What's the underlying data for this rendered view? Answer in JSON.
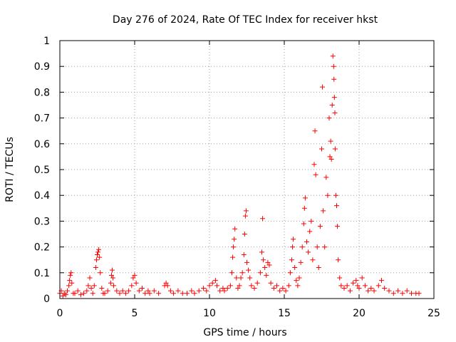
{
  "chart_data": {
    "type": "scatter",
    "title": "Day 276 of 2024, Rate Of TEC Index for receiver hkst",
    "xlabel": "GPS time / hours",
    "ylabel": "ROTI / TECUs",
    "xlim": [
      0,
      25
    ],
    "ylim": [
      0,
      1
    ],
    "x_ticks": [
      "0",
      "5",
      "10",
      "15",
      "20",
      "25"
    ],
    "y_ticks": [
      "0",
      "0.1",
      "0.2",
      "0.3",
      "0.4",
      "0.5",
      "0.6",
      "0.7",
      "0.8",
      "0.9",
      "1"
    ],
    "grid": true,
    "marker": "+",
    "color": "#ff0000",
    "series": [
      {
        "name": "",
        "points": [
          [
            0.0,
            0.02
          ],
          [
            0.1,
            0.03
          ],
          [
            0.2,
            0.01
          ],
          [
            0.3,
            0.02
          ],
          [
            0.4,
            0.015
          ],
          [
            0.5,
            0.03
          ],
          [
            0.6,
            0.05
          ],
          [
            0.65,
            0.07
          ],
          [
            0.7,
            0.09
          ],
          [
            0.75,
            0.1
          ],
          [
            0.8,
            0.06
          ],
          [
            0.9,
            0.02
          ],
          [
            1.0,
            0.02
          ],
          [
            1.2,
            0.03
          ],
          [
            1.4,
            0.015
          ],
          [
            1.6,
            0.02
          ],
          [
            1.8,
            0.03
          ],
          [
            1.9,
            0.05
          ],
          [
            2.0,
            0.08
          ],
          [
            2.1,
            0.04
          ],
          [
            2.2,
            0.02
          ],
          [
            2.3,
            0.05
          ],
          [
            2.4,
            0.12
          ],
          [
            2.45,
            0.15
          ],
          [
            2.5,
            0.17
          ],
          [
            2.55,
            0.18
          ],
          [
            2.6,
            0.19
          ],
          [
            2.65,
            0.16
          ],
          [
            2.7,
            0.1
          ],
          [
            2.8,
            0.04
          ],
          [
            2.9,
            0.02
          ],
          [
            3.0,
            0.02
          ],
          [
            3.2,
            0.03
          ],
          [
            3.4,
            0.06
          ],
          [
            3.45,
            0.09
          ],
          [
            3.5,
            0.11
          ],
          [
            3.55,
            0.08
          ],
          [
            3.6,
            0.05
          ],
          [
            3.8,
            0.03
          ],
          [
            4.0,
            0.02
          ],
          [
            4.2,
            0.03
          ],
          [
            4.4,
            0.02
          ],
          [
            4.6,
            0.03
          ],
          [
            4.8,
            0.05
          ],
          [
            4.9,
            0.08
          ],
          [
            5.0,
            0.09
          ],
          [
            5.1,
            0.06
          ],
          [
            5.3,
            0.03
          ],
          [
            5.5,
            0.04
          ],
          [
            5.7,
            0.02
          ],
          [
            5.9,
            0.03
          ],
          [
            6.0,
            0.02
          ],
          [
            6.3,
            0.03
          ],
          [
            6.6,
            0.02
          ],
          [
            7.0,
            0.05
          ],
          [
            7.1,
            0.06
          ],
          [
            7.2,
            0.05
          ],
          [
            7.4,
            0.03
          ],
          [
            7.6,
            0.02
          ],
          [
            7.9,
            0.03
          ],
          [
            8.2,
            0.02
          ],
          [
            8.5,
            0.02
          ],
          [
            8.8,
            0.03
          ],
          [
            9.0,
            0.02
          ],
          [
            9.3,
            0.03
          ],
          [
            9.6,
            0.04
          ],
          [
            9.8,
            0.03
          ],
          [
            10.0,
            0.05
          ],
          [
            10.2,
            0.06
          ],
          [
            10.4,
            0.07
          ],
          [
            10.5,
            0.05
          ],
          [
            10.7,
            0.03
          ],
          [
            10.9,
            0.04
          ],
          [
            11.0,
            0.03
          ],
          [
            11.2,
            0.04
          ],
          [
            11.4,
            0.05
          ],
          [
            11.5,
            0.1
          ],
          [
            11.55,
            0.16
          ],
          [
            11.6,
            0.2
          ],
          [
            11.65,
            0.23
          ],
          [
            11.7,
            0.27
          ],
          [
            11.8,
            0.08
          ],
          [
            11.9,
            0.04
          ],
          [
            12.0,
            0.05
          ],
          [
            12.1,
            0.08
          ],
          [
            12.2,
            0.1
          ],
          [
            12.3,
            0.17
          ],
          [
            12.35,
            0.25
          ],
          [
            12.4,
            0.32
          ],
          [
            12.45,
            0.34
          ],
          [
            12.5,
            0.14
          ],
          [
            12.6,
            0.11
          ],
          [
            12.7,
            0.08
          ],
          [
            12.8,
            0.05
          ],
          [
            13.0,
            0.04
          ],
          [
            13.2,
            0.06
          ],
          [
            13.4,
            0.1
          ],
          [
            13.5,
            0.18
          ],
          [
            13.55,
            0.31
          ],
          [
            13.6,
            0.15
          ],
          [
            13.7,
            0.12
          ],
          [
            13.8,
            0.09
          ],
          [
            13.9,
            0.14
          ],
          [
            14.0,
            0.13
          ],
          [
            14.1,
            0.06
          ],
          [
            14.3,
            0.04
          ],
          [
            14.5,
            0.05
          ],
          [
            14.7,
            0.03
          ],
          [
            14.9,
            0.04
          ],
          [
            15.1,
            0.03
          ],
          [
            15.3,
            0.05
          ],
          [
            15.4,
            0.1
          ],
          [
            15.5,
            0.15
          ],
          [
            15.55,
            0.2
          ],
          [
            15.6,
            0.23
          ],
          [
            15.7,
            0.12
          ],
          [
            15.8,
            0.07
          ],
          [
            15.9,
            0.05
          ],
          [
            16.0,
            0.08
          ],
          [
            16.1,
            0.14
          ],
          [
            16.2,
            0.2
          ],
          [
            16.3,
            0.29
          ],
          [
            16.35,
            0.35
          ],
          [
            16.4,
            0.39
          ],
          [
            16.5,
            0.22
          ],
          [
            16.6,
            0.18
          ],
          [
            16.7,
            0.26
          ],
          [
            16.8,
            0.3
          ],
          [
            16.9,
            0.15
          ],
          [
            17.0,
            0.52
          ],
          [
            17.05,
            0.65
          ],
          [
            17.1,
            0.48
          ],
          [
            17.2,
            0.2
          ],
          [
            17.3,
            0.12
          ],
          [
            17.4,
            0.28
          ],
          [
            17.5,
            0.58
          ],
          [
            17.55,
            0.82
          ],
          [
            17.6,
            0.34
          ],
          [
            17.7,
            0.2
          ],
          [
            17.8,
            0.47
          ],
          [
            17.9,
            0.4
          ],
          [
            18.0,
            0.7
          ],
          [
            18.05,
            0.55
          ],
          [
            18.1,
            0.61
          ],
          [
            18.15,
            0.54
          ],
          [
            18.2,
            0.75
          ],
          [
            18.25,
            0.94
          ],
          [
            18.3,
            0.9
          ],
          [
            18.32,
            0.85
          ],
          [
            18.35,
            0.78
          ],
          [
            18.38,
            0.72
          ],
          [
            18.4,
            0.58
          ],
          [
            18.45,
            0.4
          ],
          [
            18.5,
            0.36
          ],
          [
            18.55,
            0.28
          ],
          [
            18.6,
            0.15
          ],
          [
            18.7,
            0.08
          ],
          [
            18.8,
            0.05
          ],
          [
            19.0,
            0.04
          ],
          [
            19.2,
            0.05
          ],
          [
            19.4,
            0.03
          ],
          [
            19.6,
            0.06
          ],
          [
            19.8,
            0.07
          ],
          [
            19.9,
            0.05
          ],
          [
            20.0,
            0.04
          ],
          [
            20.2,
            0.08
          ],
          [
            20.4,
            0.05
          ],
          [
            20.6,
            0.03
          ],
          [
            20.8,
            0.04
          ],
          [
            21.0,
            0.03
          ],
          [
            21.3,
            0.05
          ],
          [
            21.5,
            0.07
          ],
          [
            21.7,
            0.04
          ],
          [
            22.0,
            0.03
          ],
          [
            22.3,
            0.02
          ],
          [
            22.6,
            0.03
          ],
          [
            22.9,
            0.02
          ],
          [
            23.2,
            0.03
          ],
          [
            23.5,
            0.02
          ],
          [
            23.8,
            0.02
          ],
          [
            24.0,
            0.02
          ]
        ]
      }
    ]
  }
}
